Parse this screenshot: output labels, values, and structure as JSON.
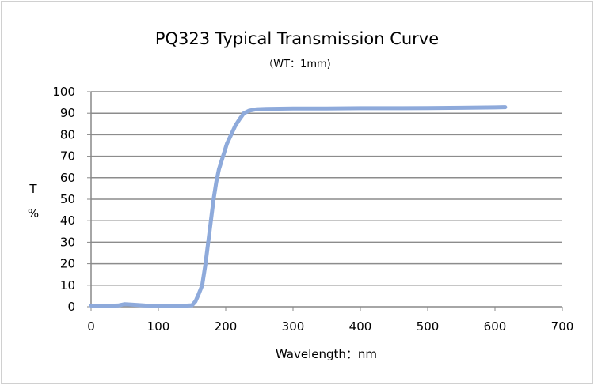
{
  "chart_data": {
    "type": "line",
    "title": "PQ323 Typical Transmission  Curve",
    "subtitle": "（WT：1mm)",
    "xlabel": "Wavelength：nm",
    "ylabel": [
      "T",
      "%"
    ],
    "xlim": [
      0,
      700
    ],
    "ylim": [
      0,
      100
    ],
    "xticks": [
      0,
      100,
      200,
      300,
      400,
      500,
      600,
      700
    ],
    "yticks": [
      0,
      10,
      20,
      30,
      40,
      50,
      60,
      70,
      80,
      90,
      100
    ],
    "grid": "horizontal",
    "line_color": "#8eaadb",
    "series": [
      {
        "x": [
          0,
          20,
          40,
          50,
          60,
          80,
          100,
          120,
          140,
          150,
          155,
          160,
          165,
          170,
          174,
          178,
          182,
          186,
          190,
          196,
          202,
          208,
          214,
          220,
          227,
          235,
          245,
          260,
          280,
          300,
          350,
          400,
          450,
          500,
          550,
          600,
          615
        ],
        "y": [
          0.5,
          0.4,
          0.6,
          1.2,
          1.0,
          0.6,
          0.5,
          0.5,
          0.5,
          0.7,
          2.5,
          6,
          10,
          20,
          30,
          40,
          50,
          58,
          64,
          70,
          76,
          80,
          84,
          87,
          90,
          91.2,
          91.8,
          92.0,
          92.1,
          92.2,
          92.2,
          92.3,
          92.3,
          92.4,
          92.5,
          92.7,
          92.8
        ]
      }
    ]
  }
}
